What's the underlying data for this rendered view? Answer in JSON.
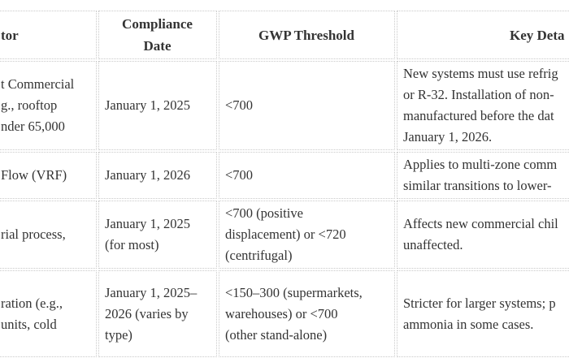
{
  "theme": {
    "text": "#333333",
    "border": "#c9c9c9",
    "bg": "#ffffff"
  },
  "table": {
    "headers": {
      "sector": {
        "label": "tor"
      },
      "compliance_date": {
        "lines": [
          "Compliance",
          "Date"
        ]
      },
      "gwp_threshold": {
        "label": "GWP Threshold"
      },
      "key_details": {
        "label": "Key Deta"
      }
    },
    "rows": [
      {
        "sector_lines": [
          "t Commercial",
          "g., rooftop",
          "nder 65,000"
        ],
        "compliance_date_lines": [
          "January 1, 2025"
        ],
        "gwp_threshold_lines": [
          "<700"
        ],
        "key_details_lines": [
          "New systems must use refrig",
          "or R-32. Installation of non-",
          "manufactured before the dat",
          "January 1, 2026."
        ]
      },
      {
        "sector_lines": [
          "Flow (VRF)"
        ],
        "compliance_date_lines": [
          "January 1, 2026"
        ],
        "gwp_threshold_lines": [
          "<700"
        ],
        "key_details_lines": [
          "Applies to multi-zone comm",
          "similar transitions to lower-"
        ]
      },
      {
        "sector_lines": [
          "rial process,"
        ],
        "compliance_date_lines": [
          "January 1, 2025",
          "(for most)"
        ],
        "gwp_threshold_lines": [
          "<700 (positive",
          "displacement) or <720",
          "(centrifugal)"
        ],
        "key_details_lines": [
          "Affects new commercial chil",
          "unaffected."
        ]
      },
      {
        "sector_lines": [
          "ration (e.g.,",
          "units, cold"
        ],
        "compliance_date_lines": [
          "January 1, 2025–",
          "2026 (varies by",
          "type)"
        ],
        "gwp_threshold_lines": [
          "<150–300 (supermarkets,",
          "warehouses) or <700",
          "(other stand-alone)"
        ],
        "key_details_lines": [
          "Stricter for larger systems; p",
          "ammonia in some cases."
        ]
      }
    ]
  }
}
